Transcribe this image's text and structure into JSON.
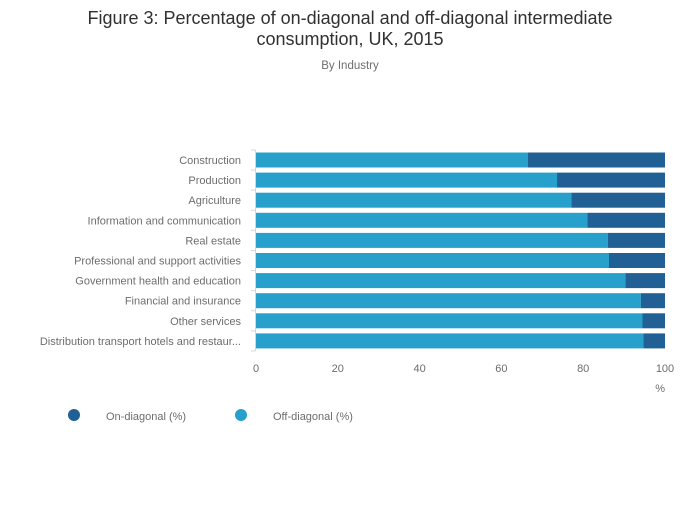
{
  "chart_data": {
    "type": "bar",
    "orientation": "horizontal",
    "stacked": true,
    "title_lines": [
      "Figure 3: Percentage of on-diagonal and off-diagonal intermediate",
      "consumption, UK, 2015"
    ],
    "subtitle": "By Industry",
    "categories": [
      "Construction",
      "Production",
      "Agriculture",
      "Information and communication",
      "Real estate",
      "Professional and support activities",
      "Government health and education",
      "Financial and insurance",
      "Other services",
      "Distribution transport hotels and restaur..."
    ],
    "series": [
      {
        "name": "Off-diagonal (%)",
        "color": "#27a0cc",
        "values": [
          66.5,
          73.6,
          77.1,
          81.0,
          86.0,
          86.3,
          90.3,
          94.1,
          94.5,
          94.7
        ]
      },
      {
        "name": "On-diagonal (%)",
        "color": "#206095",
        "values": [
          33.5,
          26.4,
          22.9,
          19.0,
          14.0,
          13.7,
          9.7,
          5.9,
          5.5,
          5.3
        ]
      }
    ],
    "legend_order": [
      "On-diagonal (%)",
      "Off-diagonal (%)"
    ],
    "xlim": [
      0,
      100
    ],
    "xticks": [
      "0",
      "20",
      "40",
      "60",
      "80",
      "100"
    ],
    "xlabel": "%",
    "legend_position": "bottom-left",
    "grid": false
  }
}
